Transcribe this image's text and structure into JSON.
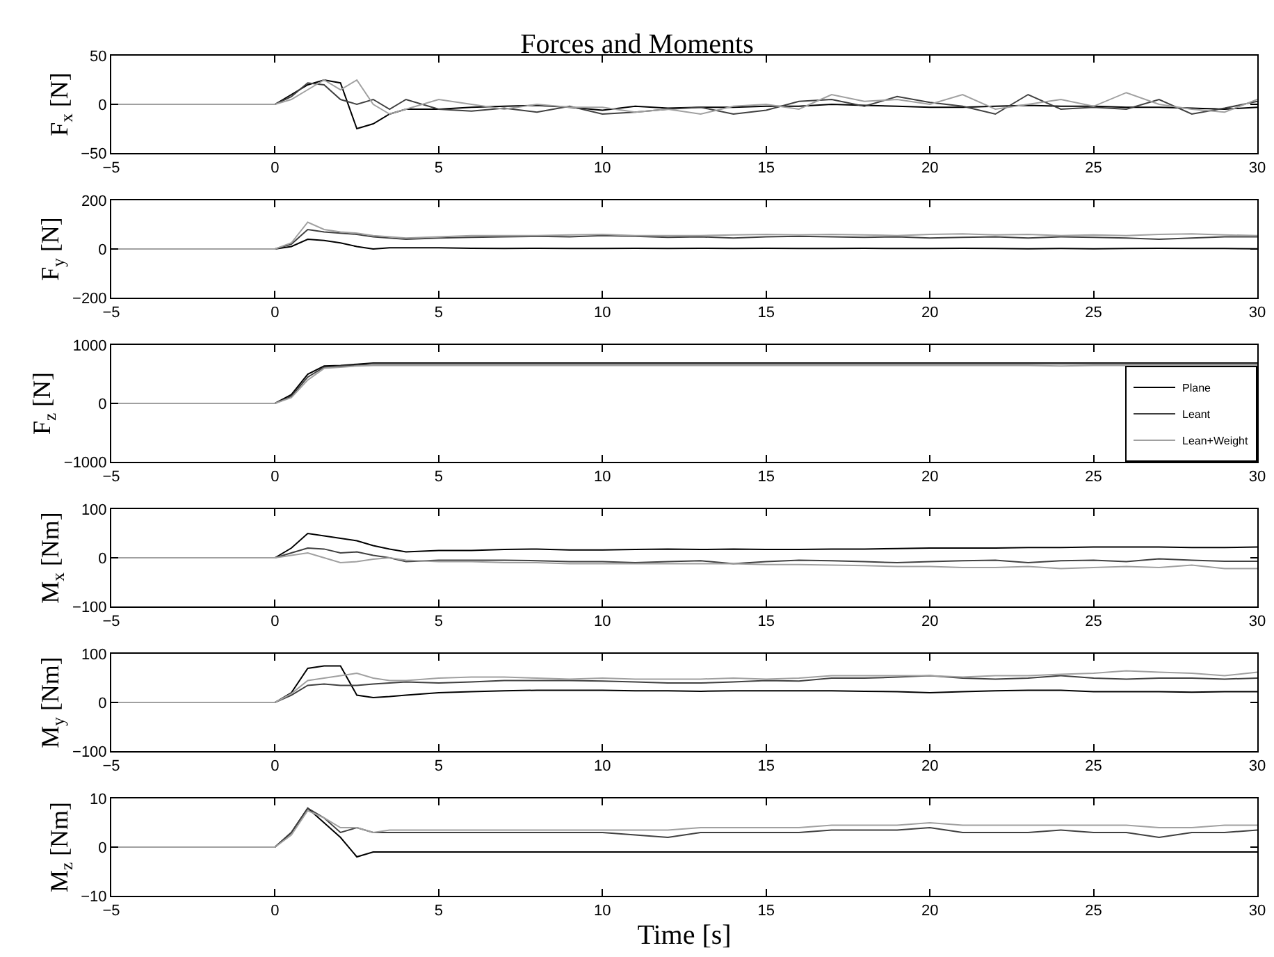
{
  "chart_data": [
    {
      "type": "line",
      "title": "Forces and Moments",
      "ylabel": "F$_{x}$ [N]",
      "x": [
        -5,
        0,
        0.5,
        1,
        1.5,
        2,
        2.5,
        3,
        3.5,
        4,
        5,
        6,
        7,
        8,
        9,
        10,
        11,
        12,
        13,
        14,
        15,
        16,
        17,
        18,
        19,
        20,
        21,
        22,
        23,
        24,
        25,
        26,
        27,
        28,
        29,
        30
      ],
      "xlim": [
        -5,
        30
      ],
      "xticks": [
        -5,
        0,
        5,
        10,
        15,
        20,
        25,
        30
      ],
      "ylim": [
        -50,
        50
      ],
      "yticks": [
        -50,
        0,
        50
      ],
      "grid": false,
      "legend": false,
      "series": [
        {
          "color": "#000000",
          "values": [
            0,
            0,
            10,
            20,
            25,
            22,
            -25,
            -20,
            -10,
            -5,
            -5,
            -3,
            -2,
            -1,
            -3,
            -6,
            -2,
            -4,
            -3,
            -3,
            -2,
            -2,
            0,
            -1,
            -2,
            -3,
            -3,
            -2,
            -1,
            -2,
            -2,
            -3,
            -3,
            -4,
            -5,
            -3
          ]
        },
        {
          "color": "#404040",
          "values": [
            0,
            0,
            8,
            22,
            20,
            5,
            0,
            5,
            -5,
            5,
            -5,
            -7,
            -4,
            -8,
            -2,
            -10,
            -8,
            -5,
            -3,
            -10,
            -6,
            3,
            5,
            -2,
            8,
            2,
            -2,
            -10,
            10,
            -5,
            -3,
            -5,
            5,
            -10,
            -4,
            3
          ]
        },
        {
          "color": "#a0a0a0",
          "values": [
            0,
            0,
            5,
            15,
            25,
            15,
            25,
            0,
            -10,
            -5,
            5,
            0,
            -5,
            0,
            -3,
            -3,
            -8,
            -5,
            -10,
            -2,
            0,
            -5,
            10,
            3,
            5,
            0,
            10,
            -5,
            0,
            5,
            -2,
            12,
            0,
            -5,
            -8,
            5
          ]
        }
      ]
    },
    {
      "type": "line",
      "ylabel": "F$_{y}$ [N]",
      "x": [
        -5,
        0,
        0.5,
        1,
        1.5,
        2,
        2.5,
        3,
        3.5,
        4,
        5,
        6,
        7,
        8,
        9,
        10,
        11,
        12,
        13,
        14,
        15,
        16,
        17,
        18,
        19,
        20,
        21,
        22,
        23,
        24,
        25,
        26,
        27,
        28,
        29,
        30
      ],
      "xlim": [
        -5,
        30
      ],
      "xticks": [
        -5,
        0,
        5,
        10,
        15,
        20,
        25,
        30
      ],
      "ylim": [
        -200,
        200
      ],
      "yticks": [
        -200,
        0,
        200
      ],
      "grid": false,
      "legend": false,
      "series": [
        {
          "color": "#000000",
          "values": [
            0,
            0,
            10,
            40,
            35,
            25,
            10,
            0,
            5,
            5,
            5,
            3,
            2,
            3,
            2,
            2,
            3,
            2,
            3,
            2,
            3,
            2,
            2,
            3,
            2,
            2,
            3,
            2,
            1,
            2,
            1,
            2,
            3,
            2,
            2,
            1
          ]
        },
        {
          "color": "#404040",
          "values": [
            0,
            0,
            20,
            80,
            70,
            65,
            60,
            50,
            45,
            40,
            45,
            48,
            50,
            52,
            50,
            55,
            52,
            48,
            50,
            45,
            50,
            52,
            50,
            48,
            50,
            45,
            48,
            50,
            45,
            50,
            48,
            45,
            40,
            45,
            50,
            50
          ]
        },
        {
          "color": "#a0a0a0",
          "values": [
            0,
            0,
            25,
            110,
            80,
            70,
            65,
            55,
            50,
            45,
            50,
            55,
            55,
            55,
            58,
            60,
            55,
            55,
            55,
            58,
            60,
            58,
            60,
            58,
            55,
            60,
            62,
            58,
            60,
            55,
            58,
            55,
            60,
            62,
            58,
            55
          ]
        }
      ]
    },
    {
      "type": "line",
      "ylabel": "F$_{z}$ [N]",
      "x": [
        -5,
        0,
        0.5,
        1,
        1.5,
        2,
        2.5,
        3,
        3.5,
        4,
        5,
        6,
        7,
        8,
        9,
        10,
        11,
        12,
        13,
        14,
        15,
        16,
        17,
        18,
        19,
        20,
        21,
        22,
        23,
        24,
        25,
        26,
        27,
        28,
        29,
        30
      ],
      "xlim": [
        -5,
        30
      ],
      "xticks": [
        -5,
        0,
        5,
        10,
        15,
        20,
        25,
        30
      ],
      "ylim": [
        -1000,
        1000
      ],
      "yticks": [
        -1000,
        0,
        1000
      ],
      "grid": false,
      "legend": "bottom right",
      "series": [
        {
          "name": "Plane",
          "color": "#000000",
          "values": [
            0,
            0,
            150,
            500,
            640,
            650,
            670,
            690,
            690,
            690,
            690,
            690,
            690,
            690,
            690,
            690,
            690,
            690,
            690,
            690,
            690,
            690,
            690,
            690,
            690,
            690,
            690,
            690,
            690,
            690,
            690,
            690,
            690,
            690,
            690,
            690
          ]
        },
        {
          "name": "Leant",
          "color": "#404040",
          "values": [
            0,
            0,
            120,
            450,
            620,
            640,
            650,
            680,
            680,
            680,
            680,
            680,
            680,
            680,
            680,
            680,
            680,
            680,
            680,
            680,
            680,
            680,
            680,
            680,
            680,
            680,
            680,
            680,
            680,
            680,
            680,
            680,
            680,
            680,
            680,
            680
          ]
        },
        {
          "name": "Lean+Weight",
          "color": "#a0a0a0",
          "values": [
            0,
            0,
            100,
            400,
            600,
            620,
            640,
            650,
            650,
            650,
            650,
            650,
            650,
            650,
            650,
            650,
            650,
            650,
            650,
            650,
            650,
            650,
            650,
            650,
            650,
            650,
            650,
            650,
            650,
            640,
            650,
            650,
            650,
            650,
            650,
            650
          ]
        }
      ]
    },
    {
      "type": "line",
      "ylabel": "M$_{x}$ [Nm]",
      "x": [
        -5,
        0,
        0.5,
        1,
        1.5,
        2,
        2.5,
        3,
        3.5,
        4,
        5,
        6,
        7,
        8,
        9,
        10,
        11,
        12,
        13,
        14,
        15,
        16,
        17,
        18,
        19,
        20,
        21,
        22,
        23,
        24,
        25,
        26,
        27,
        28,
        29,
        30
      ],
      "xlim": [
        -5,
        30
      ],
      "xticks": [
        -5,
        0,
        5,
        10,
        15,
        20,
        25,
        30
      ],
      "ylim": [
        -100,
        100
      ],
      "yticks": [
        -100,
        0,
        100
      ],
      "grid": false,
      "legend": false,
      "series": [
        {
          "color": "#000000",
          "values": [
            0,
            0,
            20,
            50,
            45,
            40,
            35,
            25,
            18,
            12,
            15,
            15,
            17,
            18,
            16,
            16,
            17,
            18,
            17,
            18,
            17,
            17,
            18,
            18,
            19,
            20,
            20,
            20,
            21,
            21,
            22,
            22,
            22,
            21,
            21,
            22
          ]
        },
        {
          "color": "#404040",
          "values": [
            0,
            0,
            10,
            20,
            18,
            10,
            12,
            5,
            0,
            -8,
            -5,
            -5,
            -5,
            -6,
            -8,
            -8,
            -10,
            -8,
            -6,
            -12,
            -8,
            -5,
            -6,
            -8,
            -10,
            -8,
            -6,
            -5,
            -10,
            -6,
            -5,
            -8,
            -2,
            -5,
            -7,
            -7
          ]
        },
        {
          "color": "#a0a0a0",
          "values": [
            0,
            0,
            5,
            10,
            0,
            -10,
            -8,
            -3,
            0,
            -5,
            -8,
            -8,
            -10,
            -10,
            -12,
            -12,
            -12,
            -12,
            -12,
            -12,
            -14,
            -14,
            -15,
            -16,
            -18,
            -18,
            -20,
            -20,
            -18,
            -22,
            -20,
            -18,
            -20,
            -15,
            -22,
            -22
          ]
        }
      ]
    },
    {
      "type": "line",
      "ylabel": "M$_{y}$ [Nm]",
      "x": [
        -5,
        0,
        0.5,
        1,
        1.5,
        2,
        2.5,
        3,
        3.5,
        4,
        5,
        6,
        7,
        8,
        9,
        10,
        11,
        12,
        13,
        14,
        15,
        16,
        17,
        18,
        19,
        20,
        21,
        22,
        23,
        24,
        25,
        26,
        27,
        28,
        29,
        30
      ],
      "xlim": [
        -5,
        30
      ],
      "xticks": [
        -5,
        0,
        5,
        10,
        15,
        20,
        25,
        30
      ],
      "ylim": [
        -100,
        100
      ],
      "yticks": [
        -100,
        0,
        100
      ],
      "grid": false,
      "legend": false,
      "series": [
        {
          "color": "#000000",
          "values": [
            0,
            0,
            20,
            70,
            75,
            75,
            15,
            10,
            12,
            15,
            20,
            22,
            24,
            25,
            25,
            25,
            24,
            24,
            23,
            24,
            24,
            24,
            24,
            23,
            22,
            20,
            22,
            24,
            25,
            25,
            22,
            22,
            22,
            21,
            22,
            22
          ]
        },
        {
          "color": "#404040",
          "values": [
            0,
            0,
            15,
            35,
            38,
            35,
            35,
            38,
            40,
            42,
            40,
            42,
            45,
            45,
            45,
            44,
            42,
            40,
            40,
            42,
            45,
            44,
            50,
            50,
            52,
            55,
            50,
            48,
            50,
            55,
            50,
            48,
            50,
            50,
            48,
            50
          ]
        },
        {
          "color": "#a0a0a0",
          "values": [
            0,
            0,
            18,
            45,
            50,
            55,
            60,
            50,
            45,
            45,
            50,
            52,
            52,
            50,
            48,
            50,
            48,
            48,
            48,
            50,
            48,
            50,
            55,
            55,
            55,
            55,
            52,
            55,
            55,
            58,
            60,
            65,
            62,
            60,
            55,
            62
          ]
        }
      ]
    },
    {
      "type": "line",
      "ylabel": "M$_{z}$ [Nm]",
      "xlabel": "Time [s]",
      "x": [
        -5,
        0,
        0.5,
        1,
        1.5,
        2,
        2.5,
        3,
        3.5,
        4,
        5,
        6,
        7,
        8,
        9,
        10,
        11,
        12,
        13,
        14,
        15,
        16,
        17,
        18,
        19,
        20,
        21,
        22,
        23,
        24,
        25,
        26,
        27,
        28,
        29,
        30
      ],
      "xlim": [
        -5,
        30
      ],
      "xticks": [
        -5,
        0,
        5,
        10,
        15,
        20,
        25,
        30
      ],
      "ylim": [
        -10,
        10
      ],
      "yticks": [
        -10,
        0,
        10
      ],
      "grid": false,
      "legend": false,
      "series": [
        {
          "color": "#000000",
          "values": [
            0,
            0,
            3,
            8,
            5,
            2,
            -2,
            -1,
            -1,
            -1,
            -1,
            -1,
            -1,
            -1,
            -1,
            -1,
            -1,
            -1,
            -1,
            -1,
            -1,
            -1,
            -1,
            -1,
            -1,
            -1,
            -1,
            -1,
            -1,
            -1,
            -1,
            -1,
            -1,
            -1,
            -1,
            -1
          ]
        },
        {
          "color": "#404040",
          "values": [
            0,
            0,
            3,
            8,
            6,
            3,
            4,
            3,
            3,
            3,
            3,
            3,
            3,
            3,
            3,
            3,
            2.5,
            2,
            3,
            3,
            3,
            3,
            3.5,
            3.5,
            3.5,
            4,
            3,
            3,
            3,
            3.5,
            3,
            3,
            2,
            3,
            3,
            3.5
          ]
        },
        {
          "color": "#a0a0a0",
          "values": [
            0,
            0,
            2.5,
            7.5,
            6,
            4,
            4,
            3,
            3.5,
            3.5,
            3.5,
            3.5,
            3.5,
            3.5,
            3.5,
            3.5,
            3.5,
            3.5,
            4,
            4,
            4,
            4,
            4.5,
            4.5,
            4.5,
            5,
            4.5,
            4.5,
            4.5,
            4.5,
            4.5,
            4.5,
            4,
            4,
            4.5,
            4.5
          ]
        }
      ]
    }
  ]
}
